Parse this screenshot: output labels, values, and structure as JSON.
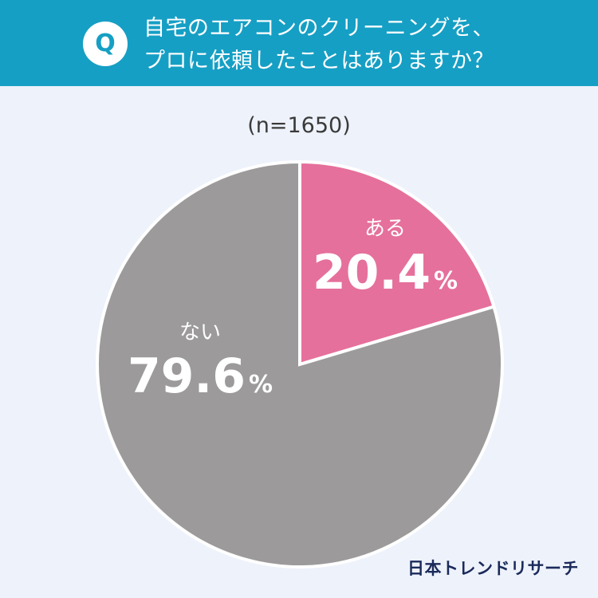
{
  "header": {
    "badge": "Q",
    "question_line1": "自宅のエアコンのクリーニングを、",
    "question_line2": "プロに依頼したことはありますか？"
  },
  "sample_size": "(n=1650)",
  "chart_data": {
    "type": "pie",
    "slices": [
      {
        "label": "ある",
        "value": 20.4,
        "display": "20.4",
        "unit": "%",
        "color": "#e5709b"
      },
      {
        "label": "ない",
        "value": 79.6,
        "display": "79.6",
        "unit": "%",
        "color": "#9c9a9b"
      }
    ],
    "start": "12 o'clock",
    "direction": "clockwise"
  },
  "brand": "日本トレンドリサーチ",
  "colors": {
    "header_bg": "#169fc4",
    "page_bg": "#eef2fb",
    "slice_separator": "#ffffff"
  }
}
